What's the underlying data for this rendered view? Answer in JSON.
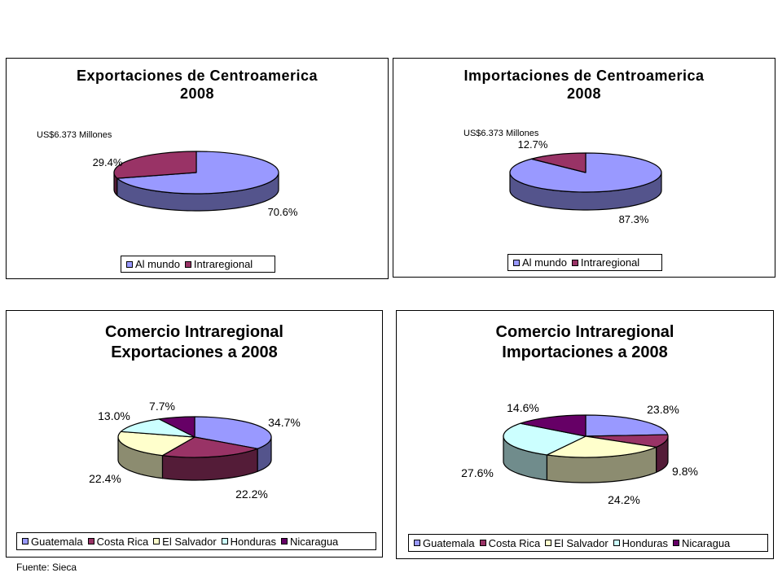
{
  "source_label": "Fuente: Sieca",
  "chart_data": [
    {
      "id": "exp",
      "type": "pie",
      "title_lines": [
        "Exportaciones de Centroamerica",
        "2008"
      ],
      "note": "US$6.373  Millones",
      "categories": [
        "Al mundo",
        "Intraregional"
      ],
      "values": [
        70.6,
        29.4
      ],
      "labels": [
        "70.6%",
        "29.4%"
      ],
      "colors": [
        "#9999FF",
        "#993366"
      ],
      "legend_placement": "bottom"
    },
    {
      "id": "imp",
      "type": "pie",
      "title_lines": [
        "Importaciones de Centroamerica",
        "2008"
      ],
      "note": "US$6.373  Millones",
      "categories": [
        "Al mundo",
        "Intraregional"
      ],
      "values": [
        87.3,
        12.7
      ],
      "labels": [
        "87.3%",
        "12.7%"
      ],
      "colors": [
        "#9999FF",
        "#993366"
      ],
      "legend_placement": "bottom"
    },
    {
      "id": "intra-exp",
      "type": "pie",
      "title_lines": [
        "Comercio Intraregional",
        "Exportaciones a 2008"
      ],
      "categories": [
        "Guatemala",
        "Costa Rica",
        "El Salvador",
        "Honduras",
        "Nicaragua"
      ],
      "values": [
        34.7,
        22.2,
        22.4,
        13.0,
        7.7
      ],
      "labels": [
        "34.7%",
        "22.2%",
        "22.4%",
        "13.0%",
        "7.7%"
      ],
      "colors": [
        "#9999FF",
        "#993366",
        "#FFFFCC",
        "#CCFFFF",
        "#660066"
      ],
      "legend_placement": "bottom"
    },
    {
      "id": "intra-imp",
      "type": "pie",
      "title_lines": [
        "Comercio Intraregional",
        "Importaciones a 2008"
      ],
      "categories": [
        "Guatemala",
        "Costa Rica",
        "El Salvador",
        "Honduras",
        "Nicaragua"
      ],
      "values": [
        23.8,
        9.8,
        24.2,
        27.6,
        14.6
      ],
      "labels": [
        "23.8%",
        "9.8%",
        "24.2%",
        "27.6%",
        "14.6%"
      ],
      "colors": [
        "#9999FF",
        "#993366",
        "#FFFFCC",
        "#CCFFFF",
        "#660066"
      ],
      "legend_placement": "bottom"
    }
  ]
}
